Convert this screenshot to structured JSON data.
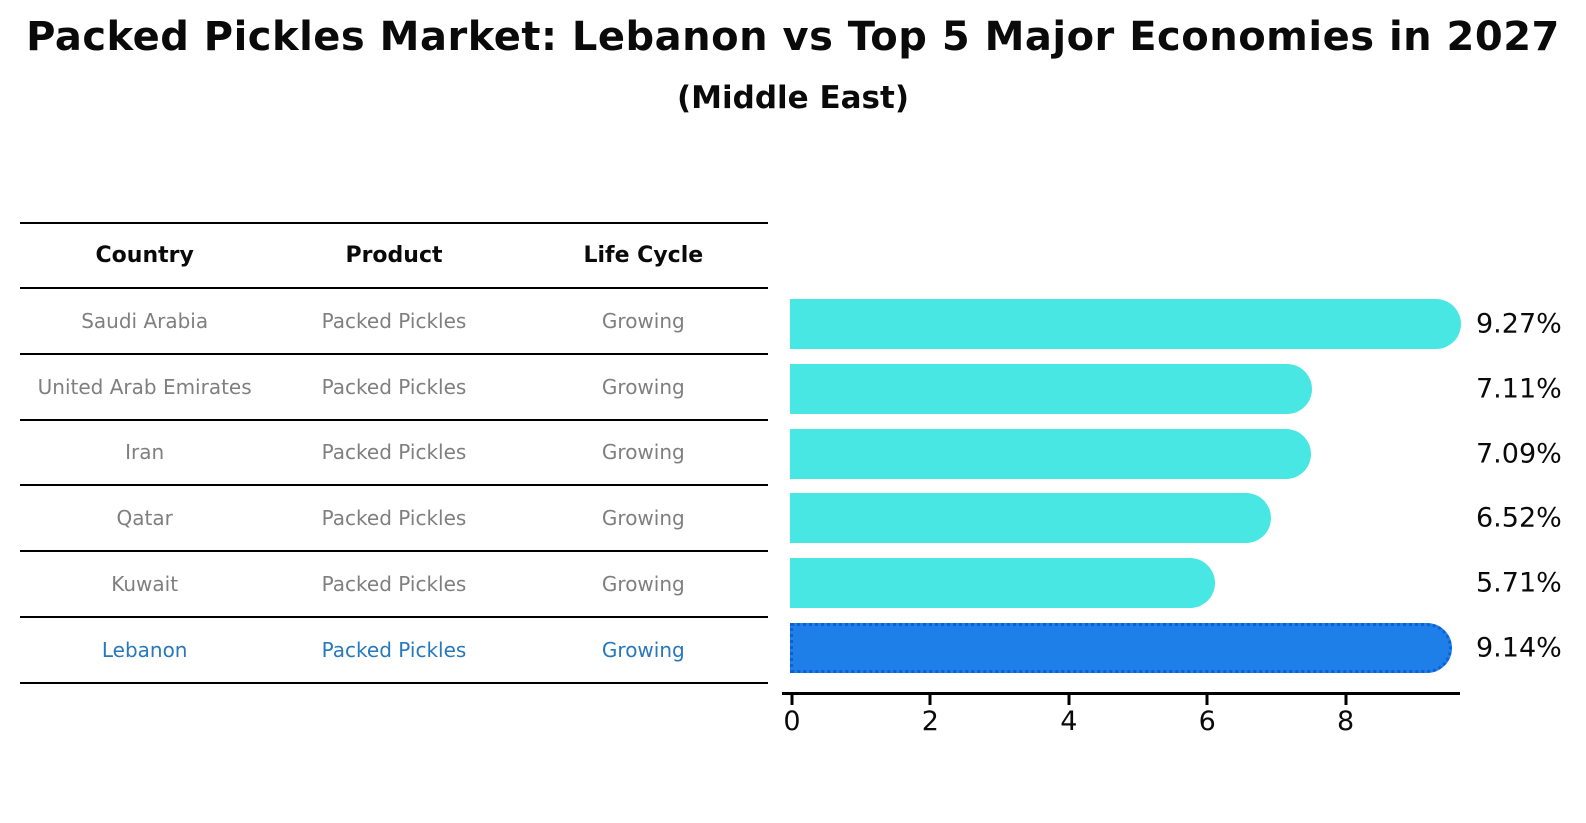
{
  "header": {
    "title": "Packed Pickles Market: Lebanon vs Top 5 Major Economies in 2027",
    "subtitle": "(Middle East)"
  },
  "table": {
    "headers": [
      "Country",
      "Product",
      "Life Cycle"
    ],
    "rows": [
      {
        "country": "Saudi Arabia",
        "product": "Packed Pickles",
        "life_cycle": "Growing"
      },
      {
        "country": "United Arab Emirates",
        "product": "Packed Pickles",
        "life_cycle": "Growing"
      },
      {
        "country": "Iran",
        "product": "Packed Pickles",
        "life_cycle": "Growing"
      },
      {
        "country": "Qatar",
        "product": "Packed Pickles",
        "life_cycle": "Growing"
      },
      {
        "country": "Kuwait",
        "product": "Packed Pickles",
        "life_cycle": "Growing"
      },
      {
        "country": "Lebanon",
        "product": "Packed Pickles",
        "life_cycle": "Growing"
      }
    ],
    "highlight_row": 5,
    "highlight_text_color": "#2878be",
    "muted_text_color": "#7f7f7f"
  },
  "chart_data": {
    "type": "bar",
    "orientation": "horizontal",
    "title": "Packed Pickles Market: Lebanon vs Top 5 Major Economies in 2027",
    "subtitle": "(Middle East)",
    "categories": [
      "Saudi Arabia",
      "United Arab Emirates",
      "Iran",
      "Qatar",
      "Kuwait",
      "Lebanon"
    ],
    "values": [
      9.27,
      7.11,
      7.09,
      6.52,
      5.71,
      9.14
    ],
    "value_labels": [
      "9.27%",
      "7.11%",
      "7.09%",
      "6.52%",
      "5.71%",
      "9.14%"
    ],
    "x_ticks": [
      "0",
      "2",
      "4",
      "6",
      "8"
    ],
    "x_tick_values": [
      0,
      2,
      4,
      6,
      8
    ],
    "xlim": [
      0,
      9.7
    ],
    "grid": false,
    "legend": false,
    "bar_color": "#49e7e3",
    "highlight_index": 5,
    "highlight_bar_color": "#1e7fe8",
    "highlight_border_color": "#0c5fd6",
    "highlight_border_style": "dotted"
  }
}
